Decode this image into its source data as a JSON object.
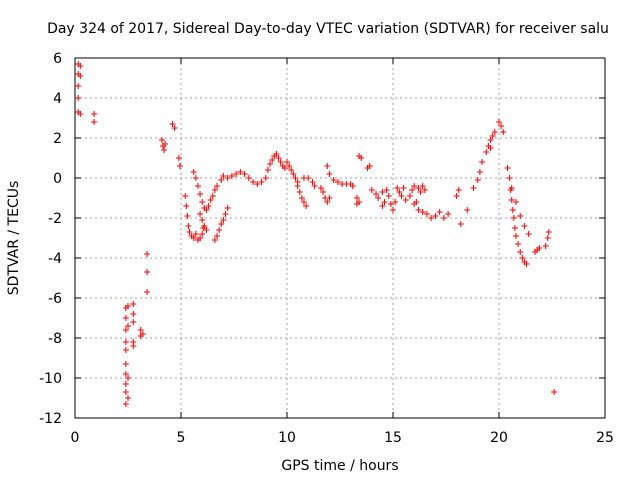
{
  "chart_data": {
    "type": "scatter",
    "title": "Day 324 of 2017, Sidereal Day-to-day VTEC variation (SDTVAR) for receiver salu",
    "xlabel": "GPS time / hours",
    "ylabel": "SDTVAR / TECUs",
    "xlim": [
      0,
      25
    ],
    "ylim": [
      -12,
      6
    ],
    "xticks": [
      0,
      5,
      10,
      15,
      20,
      25
    ],
    "xtick_labels": [
      "0",
      "5",
      "10",
      "15",
      "20",
      "25"
    ],
    "yticks": [
      6,
      4,
      2,
      0,
      -2,
      -4,
      -6,
      -8,
      -10,
      -12
    ],
    "ytick_labels": [
      "6",
      "4",
      "2",
      "0",
      "-2",
      "-4",
      "-6",
      "-8",
      "-10",
      "-12"
    ],
    "grid": true,
    "marker": "+",
    "color": "#ff0000",
    "series": [
      {
        "name": "SDTVAR",
        "points": [
          [
            0.15,
            5.7
          ],
          [
            0.15,
            5.2
          ],
          [
            0.15,
            4.6
          ],
          [
            0.15,
            4.0
          ],
          [
            0.15,
            3.3
          ],
          [
            0.25,
            5.6
          ],
          [
            0.25,
            5.1
          ],
          [
            0.25,
            3.2
          ],
          [
            0.9,
            3.2
          ],
          [
            0.9,
            2.8
          ],
          [
            2.4,
            -6.5
          ],
          [
            2.4,
            -7.0
          ],
          [
            2.4,
            -7.6
          ],
          [
            2.4,
            -8.2
          ],
          [
            2.4,
            -8.6
          ],
          [
            2.4,
            -9.3
          ],
          [
            2.4,
            -9.8
          ],
          [
            2.4,
            -10.3
          ],
          [
            2.4,
            -10.7
          ],
          [
            2.4,
            -11.3
          ],
          [
            2.5,
            -6.4
          ],
          [
            2.5,
            -7.4
          ],
          [
            2.5,
            -10.0
          ],
          [
            2.5,
            -11.0
          ],
          [
            2.75,
            -6.3
          ],
          [
            2.75,
            -6.8
          ],
          [
            2.75,
            -7.2
          ],
          [
            2.75,
            -8.2
          ],
          [
            2.75,
            -8.4
          ],
          [
            3.1,
            -7.6
          ],
          [
            3.1,
            -7.9
          ],
          [
            3.2,
            -7.8
          ],
          [
            3.4,
            -3.8
          ],
          [
            3.4,
            -4.7
          ],
          [
            3.4,
            -5.7
          ],
          [
            4.1,
            1.9
          ],
          [
            4.15,
            1.6
          ],
          [
            4.2,
            1.4
          ],
          [
            4.25,
            1.7
          ],
          [
            4.6,
            2.7
          ],
          [
            4.7,
            2.5
          ],
          [
            4.9,
            1.0
          ],
          [
            4.95,
            0.6
          ],
          [
            5.2,
            -0.9
          ],
          [
            5.25,
            -1.4
          ],
          [
            5.3,
            -1.9
          ],
          [
            5.35,
            -2.4
          ],
          [
            5.4,
            -2.7
          ],
          [
            5.5,
            -2.9
          ],
          [
            5.6,
            -3.0
          ],
          [
            5.7,
            -2.8
          ],
          [
            5.8,
            -3.1
          ],
          [
            5.9,
            -3.0
          ],
          [
            6.0,
            -2.8
          ],
          [
            6.05,
            -2.5
          ],
          [
            5.6,
            0.3
          ],
          [
            5.7,
            0.0
          ],
          [
            5.8,
            -0.4
          ],
          [
            5.9,
            -0.8
          ],
          [
            6.0,
            -1.2
          ],
          [
            6.1,
            -1.5
          ],
          [
            6.2,
            -1.6
          ],
          [
            6.3,
            -1.4
          ],
          [
            6.4,
            -1.1
          ],
          [
            5.9,
            -1.8
          ],
          [
            6.0,
            -2.1
          ],
          [
            6.1,
            -2.4
          ],
          [
            6.2,
            -2.6
          ],
          [
            6.6,
            -3.1
          ],
          [
            6.7,
            -2.9
          ],
          [
            6.8,
            -2.6
          ],
          [
            6.9,
            -2.3
          ],
          [
            7.0,
            -2.1
          ],
          [
            7.1,
            -1.8
          ],
          [
            7.2,
            -1.5
          ],
          [
            6.5,
            -0.9
          ],
          [
            6.6,
            -0.6
          ],
          [
            6.7,
            -0.4
          ],
          [
            6.9,
            -0.1
          ],
          [
            7.0,
            0.1
          ],
          [
            7.2,
            0.0
          ],
          [
            7.4,
            0.1
          ],
          [
            7.6,
            0.2
          ],
          [
            7.8,
            0.3
          ],
          [
            8.0,
            0.2
          ],
          [
            8.2,
            0.0
          ],
          [
            8.4,
            -0.2
          ],
          [
            8.6,
            -0.3
          ],
          [
            8.8,
            -0.2
          ],
          [
            9.0,
            0.0
          ],
          [
            9.1,
            0.4
          ],
          [
            9.2,
            0.7
          ],
          [
            9.3,
            0.9
          ],
          [
            9.4,
            1.1
          ],
          [
            9.5,
            1.2
          ],
          [
            9.6,
            1.0
          ],
          [
            9.7,
            0.8
          ],
          [
            9.8,
            0.6
          ],
          [
            9.9,
            0.5
          ],
          [
            10.0,
            0.8
          ],
          [
            10.1,
            0.6
          ],
          [
            10.2,
            0.4
          ],
          [
            10.3,
            0.2
          ],
          [
            10.4,
            0.0
          ],
          [
            10.5,
            -0.2
          ],
          [
            10.5,
            -0.4
          ],
          [
            10.6,
            -0.7
          ],
          [
            10.7,
            -1.0
          ],
          [
            10.8,
            -1.2
          ],
          [
            10.9,
            -1.4
          ],
          [
            10.8,
            0.0
          ],
          [
            11.0,
            0.0
          ],
          [
            11.2,
            -0.2
          ],
          [
            11.3,
            -0.4
          ],
          [
            11.6,
            -0.5
          ],
          [
            11.7,
            -0.7
          ],
          [
            11.8,
            -1.0
          ],
          [
            11.9,
            -1.2
          ],
          [
            12.0,
            -1.0
          ],
          [
            11.9,
            0.6
          ],
          [
            12.0,
            0.2
          ],
          [
            12.2,
            -0.1
          ],
          [
            12.4,
            -0.2
          ],
          [
            12.6,
            -0.3
          ],
          [
            12.8,
            -0.3
          ],
          [
            13.0,
            -0.3
          ],
          [
            13.1,
            -0.4
          ],
          [
            13.3,
            -1.0
          ],
          [
            13.4,
            -1.2
          ],
          [
            13.3,
            -1.3
          ],
          [
            13.4,
            1.1
          ],
          [
            13.5,
            1.0
          ],
          [
            13.8,
            0.5
          ],
          [
            13.9,
            0.6
          ],
          [
            14.0,
            -0.6
          ],
          [
            14.2,
            -0.8
          ],
          [
            14.3,
            -1.0
          ],
          [
            14.5,
            -0.7
          ],
          [
            14.5,
            -1.4
          ],
          [
            14.6,
            -1.2
          ],
          [
            14.7,
            -0.6
          ],
          [
            14.8,
            -0.9
          ],
          [
            14.9,
            -1.3
          ],
          [
            15.0,
            -1.6
          ],
          [
            15.1,
            -1.2
          ],
          [
            15.2,
            -0.5
          ],
          [
            15.3,
            -0.7
          ],
          [
            15.4,
            -0.9
          ],
          [
            15.5,
            -0.5
          ],
          [
            15.6,
            -1.1
          ],
          [
            15.8,
            -0.9
          ],
          [
            15.9,
            -0.6
          ],
          [
            16.0,
            -0.4
          ],
          [
            16.1,
            -1.2
          ],
          [
            16.2,
            -0.5
          ],
          [
            16.3,
            -0.7
          ],
          [
            16.4,
            -0.4
          ],
          [
            16.5,
            -0.6
          ],
          [
            16.0,
            -1.3
          ],
          [
            16.2,
            -1.6
          ],
          [
            16.4,
            -1.7
          ],
          [
            16.6,
            -1.8
          ],
          [
            16.8,
            -2.0
          ],
          [
            17.0,
            -1.9
          ],
          [
            17.2,
            -1.7
          ],
          [
            17.4,
            -2.0
          ],
          [
            17.6,
            -1.8
          ],
          [
            18.0,
            -0.9
          ],
          [
            18.1,
            -0.6
          ],
          [
            18.2,
            -2.3
          ],
          [
            18.5,
            -1.6
          ],
          [
            18.8,
            -0.5
          ],
          [
            19.0,
            -0.1
          ],
          [
            19.1,
            0.3
          ],
          [
            19.2,
            0.8
          ],
          [
            19.4,
            1.3
          ],
          [
            19.5,
            1.6
          ],
          [
            19.6,
            1.9
          ],
          [
            19.7,
            2.1
          ],
          [
            19.8,
            2.3
          ],
          [
            19.6,
            1.5
          ],
          [
            20.0,
            2.8
          ],
          [
            20.1,
            2.6
          ],
          [
            20.2,
            2.3
          ],
          [
            20.4,
            0.5
          ],
          [
            20.5,
            0.0
          ],
          [
            20.55,
            -0.6
          ],
          [
            20.6,
            -1.1
          ],
          [
            20.65,
            -1.6
          ],
          [
            20.7,
            -2.0
          ],
          [
            20.75,
            -2.5
          ],
          [
            20.8,
            -2.9
          ],
          [
            20.9,
            -3.3
          ],
          [
            21.0,
            -3.7
          ],
          [
            21.1,
            -4.0
          ],
          [
            21.2,
            -4.2
          ],
          [
            21.3,
            -4.3
          ],
          [
            20.6,
            -0.5
          ],
          [
            20.8,
            -1.2
          ],
          [
            21.0,
            -1.9
          ],
          [
            21.2,
            -2.4
          ],
          [
            21.4,
            -2.8
          ],
          [
            21.7,
            -3.7
          ],
          [
            21.8,
            -3.6
          ],
          [
            21.9,
            -3.5
          ],
          [
            22.2,
            -3.4
          ],
          [
            22.3,
            -3.0
          ],
          [
            22.35,
            -2.7
          ],
          [
            22.6,
            -10.7
          ]
        ]
      }
    ]
  }
}
